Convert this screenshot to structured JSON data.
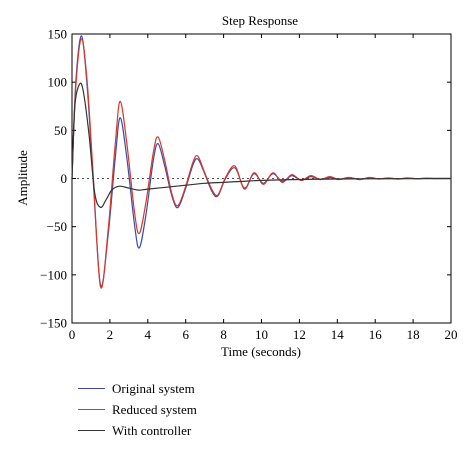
{
  "chart_data": {
    "type": "line",
    "title": "Step Response",
    "xlabel": "Time (seconds)",
    "ylabel": "Amplitude",
    "xlim": [
      0,
      20
    ],
    "ylim": [
      -150,
      150
    ],
    "xticks": [
      0,
      2,
      4,
      6,
      8,
      10,
      12,
      14,
      16,
      18,
      20
    ],
    "yticks": [
      -150,
      -100,
      -50,
      0,
      50,
      100,
      150
    ],
    "xtick_labels": [
      "0",
      "2",
      "4",
      "6",
      "8",
      "10",
      "12",
      "14",
      "16",
      "18",
      "20"
    ],
    "ytick_labels": [
      "−150",
      "−100",
      "−50",
      "0",
      "50",
      "100",
      "150"
    ],
    "grid": false,
    "reference_line": {
      "y": 0,
      "style": "dotted"
    },
    "legend_position": "below",
    "series": [
      {
        "name": "Original system",
        "color": "#3b4aa8",
        "x": [
          0,
          0.2,
          0.5,
          0.8,
          1.1,
          1.5,
          1.9,
          2.3,
          2.55,
          2.9,
          3.3,
          3.55,
          3.9,
          4.3,
          4.55,
          4.9,
          5.3,
          5.6,
          6.0,
          6.4,
          6.65,
          7.0,
          7.4,
          7.7,
          8.1,
          8.6,
          9.1,
          9.6,
          10.1,
          10.6,
          11.1,
          11.6,
          12.1,
          12.6,
          13.1,
          13.6,
          14.1,
          14.6,
          15.2,
          15.7,
          16.2,
          16.7,
          17.2,
          17.7,
          18.2,
          18.7,
          19.3,
          20
        ],
        "y": [
          0,
          100,
          148,
          95,
          5,
          -110,
          -60,
          25,
          63,
          20,
          -48,
          -72,
          -38,
          20,
          36,
          12,
          -20,
          -30,
          -10,
          15,
          20,
          5,
          -14,
          -18,
          0,
          11,
          -10,
          5,
          -5,
          5,
          -3,
          3,
          -2,
          2,
          -1,
          1,
          -1,
          1,
          -1,
          1,
          -0.5,
          0.5,
          -0.5,
          0.5,
          -0.3,
          0.3,
          0,
          0
        ]
      },
      {
        "name": "Reduced system",
        "color": "#d9372a",
        "x": [
          0,
          0.2,
          0.5,
          0.8,
          1.1,
          1.5,
          1.9,
          2.3,
          2.55,
          2.9,
          3.3,
          3.55,
          3.9,
          4.3,
          4.55,
          4.9,
          5.3,
          5.6,
          6.0,
          6.4,
          6.65,
          7.0,
          7.4,
          7.7,
          8.1,
          8.6,
          9.1,
          9.6,
          10.1,
          10.6,
          11.1,
          11.6,
          12.1,
          12.6,
          13.1,
          13.6,
          14.1,
          14.6,
          15.2,
          15.7,
          16.2,
          16.7,
          17.2,
          17.7,
          18.2,
          18.7,
          19.3,
          20
        ],
        "y": [
          0,
          95,
          145,
          100,
          10,
          -112,
          -55,
          40,
          80,
          35,
          -35,
          -57,
          -25,
          28,
          43,
          18,
          -18,
          -28,
          -8,
          18,
          23,
          6,
          -12,
          -17,
          1,
          13,
          -11,
          6,
          -6,
          6,
          -4,
          4,
          -2,
          3,
          -1,
          2,
          -1,
          1,
          -1,
          1,
          -0.5,
          0.5,
          -0.5,
          0.5,
          -0.3,
          0.3,
          0,
          0
        ]
      },
      {
        "name": "With controller",
        "color": "#333333",
        "x": [
          0,
          0.15,
          0.4,
          0.6,
          0.9,
          1.2,
          1.5,
          1.8,
          2.1,
          2.5,
          3.0,
          3.5,
          4.0,
          5.0,
          6.0,
          7.0,
          8.0,
          9.0,
          10.0,
          12.0,
          14.0,
          16.0,
          18.0,
          20.0
        ],
        "y": [
          0,
          75,
          98,
          90,
          45,
          -15,
          -30,
          -22,
          -12,
          -8,
          -10,
          -12,
          -11,
          -9,
          -7,
          -5,
          -4,
          -3,
          -2,
          -1,
          -0.5,
          -0.3,
          -0.2,
          0
        ]
      }
    ]
  }
}
